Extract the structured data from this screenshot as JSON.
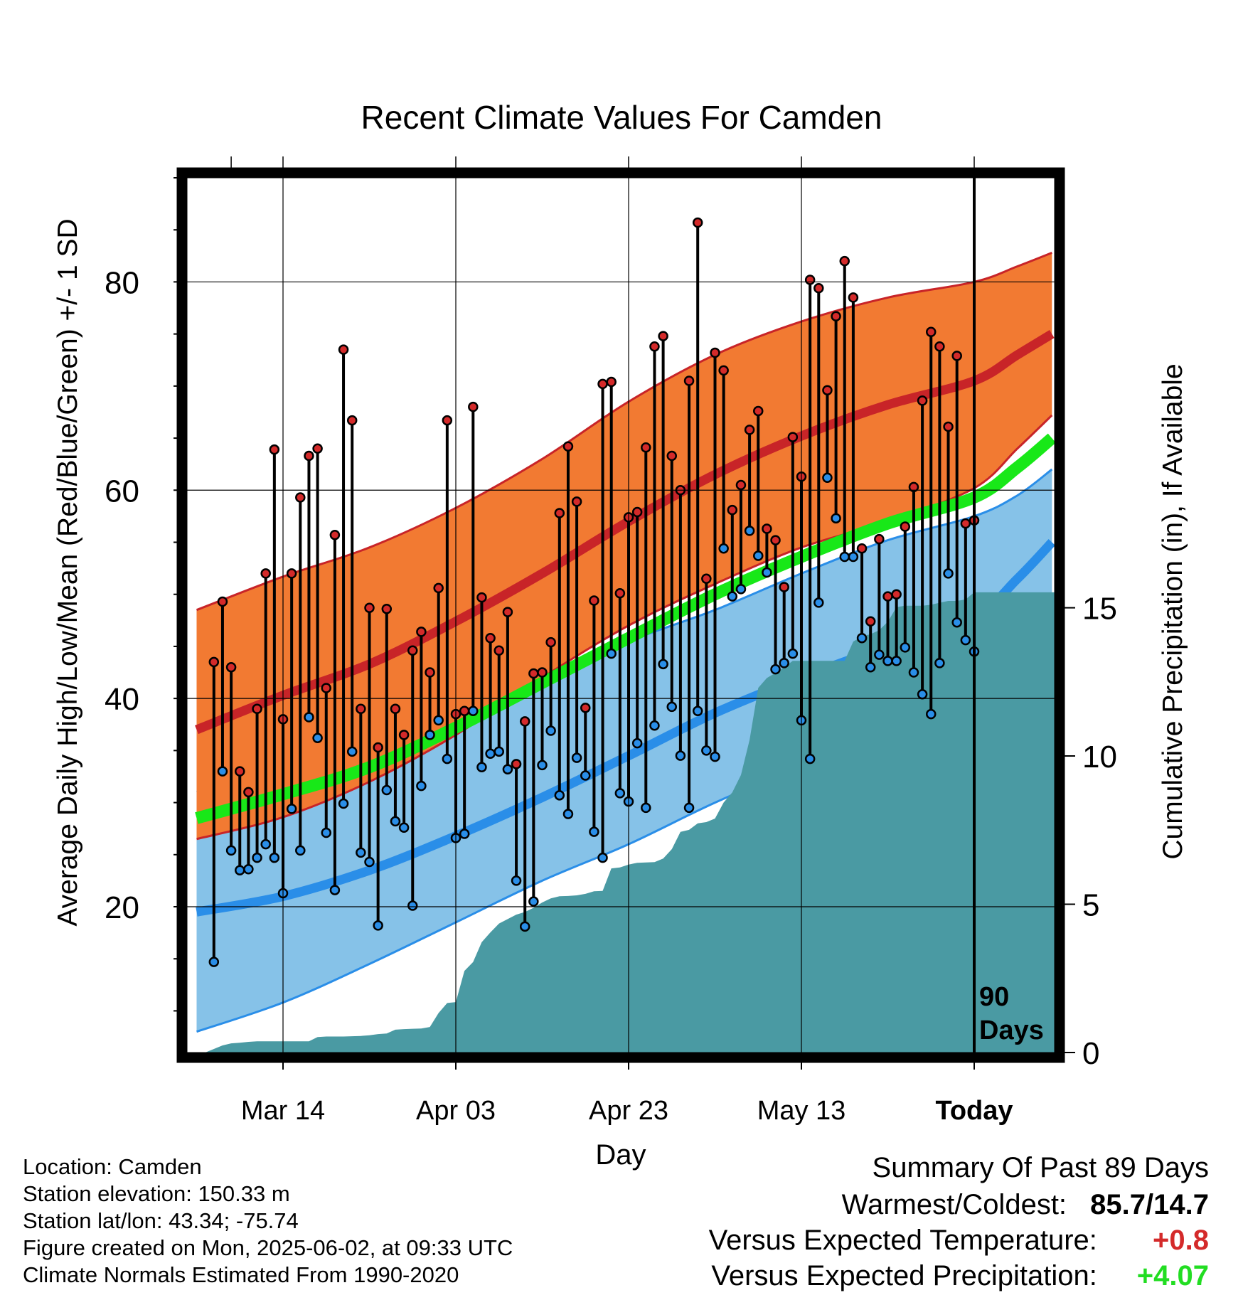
{
  "chart_data": {
    "type": "line",
    "title": "Recent Climate Values For Camden",
    "xlabel": "Day",
    "ylabel": "Average Daily High/Low/Mean (Red/Blue/Green) +/- 1 SD",
    "y2label": "Cumulative Precipitation (in), If Available",
    "x_tick_labels": [
      "Mar 14",
      "Apr 03",
      "Apr 23",
      "May 13",
      "Today"
    ],
    "x_range_days_from_today": [
      -91,
      9
    ],
    "ylim": [
      6,
      90
    ],
    "y_ticks": [
      20,
      40,
      60,
      80
    ],
    "y2lim": [
      0,
      29.5
    ],
    "y2_ticks": [
      0,
      5,
      10,
      15
    ],
    "period_label": "90\nDays",
    "normals": {
      "mean_high": [
        37,
        40.3,
        43.3,
        47.4,
        52,
        57,
        61.5,
        65.2,
        68.2,
        70.5,
        73,
        75
      ],
      "high_sd_upper": [
        48.5,
        51.7,
        54.5,
        58.3,
        63,
        68.5,
        73,
        76.2,
        78.5,
        80,
        81.5,
        82.8
      ],
      "high_sd_lower": [
        26.5,
        28.6,
        32,
        36.5,
        42,
        47,
        51,
        54.5,
        57,
        60.2,
        64,
        67.2
      ],
      "mean_low": [
        19.5,
        21,
        23.5,
        26.8,
        30.5,
        34.5,
        38.6,
        42,
        45,
        47.8,
        51.5,
        55
      ],
      "low_sd_upper": [
        31,
        33,
        35.5,
        38.5,
        42,
        45.5,
        48.5,
        52,
        55.2,
        57.5,
        59.5,
        62
      ],
      "low_sd_lower": [
        8,
        10.8,
        14.5,
        18.5,
        22.5,
        26,
        30,
        33.5,
        37,
        40,
        44,
        48.5
      ],
      "mean": [
        28.5,
        30.8,
        33.4,
        37.2,
        41.5,
        45.8,
        50,
        53.6,
        56.8,
        59.3,
        62.2,
        65
      ],
      "days_from_today": [
        -90,
        -80,
        -70,
        -60,
        -50,
        -40,
        -30,
        -20,
        -10,
        0,
        5,
        9
      ]
    },
    "series": [
      {
        "name": "Daily High",
        "color": "#d42a2a",
        "values": [
          43.5,
          49.3,
          43,
          33,
          31,
          39,
          52,
          63.9,
          38,
          52,
          59.3,
          63.3,
          64,
          41,
          55.7,
          73.5,
          66.7,
          39,
          48.7,
          35.3,
          48.6,
          39,
          36.5,
          44.6,
          46.4,
          42.5,
          50.6,
          66.7,
          38.5,
          38.8,
          68,
          49.7,
          45.8,
          44.6,
          48.3,
          33.7,
          37.8,
          42.4,
          42.5,
          45.4,
          57.8,
          64.2,
          58.9,
          39.1,
          49.4,
          70.2,
          70.4,
          50.1,
          57.4,
          57.9,
          64.1,
          73.8,
          74.8,
          63.3,
          60,
          70.5,
          85.7,
          51.5,
          73.2,
          71.5,
          58.1,
          60.5,
          65.8,
          67.6,
          56.3,
          55.2,
          50.7,
          65.1,
          61.3,
          80.2,
          79.4,
          69.6,
          76.7,
          82,
          78.5,
          54.4,
          47.4,
          55.3,
          49.8,
          50,
          56.5,
          60.3,
          68.6,
          75.2,
          73.8,
          66.1,
          72.9,
          56.8,
          57.1
        ]
      },
      {
        "name": "Daily Low",
        "color": "#2a8ee8",
        "values": [
          14.7,
          33,
          25.4,
          23.5,
          23.6,
          24.7,
          26,
          24.7,
          21.3,
          29.4,
          25.4,
          38.2,
          36.2,
          27.1,
          21.6,
          29.9,
          34.9,
          25.2,
          24.3,
          18.2,
          31.2,
          28.2,
          27.6,
          20.1,
          31.6,
          36.5,
          37.9,
          34.2,
          26.6,
          27,
          38.8,
          33.4,
          34.7,
          34.9,
          33.2,
          22.5,
          18.1,
          20.5,
          33.6,
          36.9,
          30.7,
          28.9,
          34.3,
          32.6,
          27.2,
          24.7,
          44.3,
          30.9,
          30.1,
          35.7,
          29.5,
          37.4,
          43.3,
          39.2,
          34.5,
          29.5,
          38.8,
          35,
          34.4,
          54.4,
          49.8,
          50.5,
          56.1,
          53.7,
          52.1,
          42.8,
          43.4,
          44.3,
          37.9,
          34.2,
          49.2,
          61.2,
          57.3,
          53.6,
          53.6,
          45.8,
          43,
          44.2,
          43.6,
          43.6,
          44.9,
          42.5,
          40.4,
          38.5,
          43.4,
          52,
          47.3,
          45.6,
          44.5
        ]
      },
      {
        "name": "Cumulative Precipitation",
        "color": "#4a9aa3",
        "values": [
          0,
          0.12,
          0.24,
          0.31,
          0.33,
          0.36,
          0.38,
          0.38,
          0.38,
          0.38,
          0.38,
          0.38,
          0.38,
          0.52,
          0.54,
          0.54,
          0.54,
          0.55,
          0.56,
          0.58,
          0.62,
          0.64,
          0.77,
          0.79,
          0.8,
          0.81,
          0.86,
          1.33,
          1.67,
          1.7,
          2.75,
          3.05,
          3.72,
          4.05,
          4.35,
          4.5,
          4.65,
          4.74,
          4.88,
          5.06,
          5.2,
          5.27,
          5.28,
          5.3,
          5.35,
          5.44,
          5.45,
          6.21,
          6.24,
          6.34,
          6.4,
          6.41,
          6.42,
          6.54,
          6.86,
          7.44,
          7.51,
          7.73,
          7.77,
          7.89,
          8.43,
          8.77,
          9.36,
          10.54,
          12.3,
          12.63,
          12.8,
          12.99,
          13.21,
          13.21,
          13.21,
          13.21,
          13.21,
          13.21,
          13.21,
          13.86,
          14.03,
          14.11,
          14.24,
          14.53,
          15.02,
          15.07,
          15.07,
          15.07,
          15.1,
          15.17,
          15.23,
          15.23,
          15.28,
          15.52
        ]
      }
    ],
    "grid": true,
    "legend": "none"
  },
  "info": {
    "location": "Location: Camden",
    "elevation": "Station elevation: 150.33 m",
    "latlon": "Station lat/lon: 43.34; -75.74",
    "created": "Figure created on Mon, 2025-06-02, at 09:33 UTC",
    "normals": "Climate Normals Estimated From 1990-2020"
  },
  "summary": {
    "title": "Summary Of Past 89 Days",
    "warmest_coldest_label": "Warmest/Coldest:",
    "warmest_coldest_value": "85.7/14.7",
    "temp_label": "Versus Expected Temperature:",
    "temp_value": "+0.8",
    "temp_color": "#d42a2a",
    "precip_label": "Versus Expected Precipitation:",
    "precip_value": "+4.07",
    "precip_color": "#22dd22"
  },
  "colors": {
    "high_band": "#f27a32",
    "high_line": "#c82428",
    "low_band": "#86c2e8",
    "low_line": "#2a8ee8",
    "mean_line": "#18e818",
    "precip": "#4a9aa3"
  }
}
